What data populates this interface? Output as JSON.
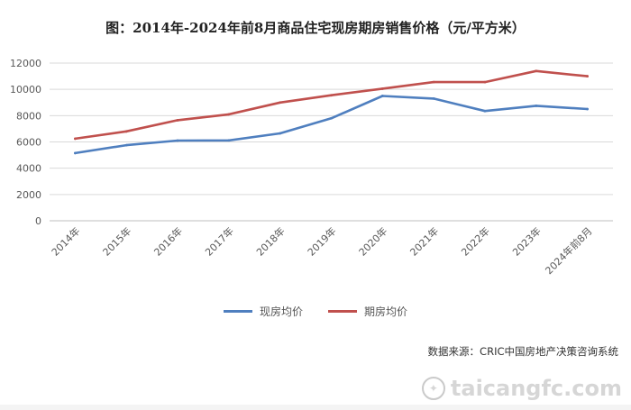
{
  "title": "图：2014年-2024年前8月商品住宅现房期房销售价格（元/平方米）",
  "source": "数据来源：CRIC中国房地产决策咨询系统",
  "watermark": "taicangfc.com",
  "colors": {
    "spot": "#4f7fbf",
    "presale": "#c0504d",
    "grid": "#d9d9d9",
    "axis": "#bfbfbf"
  },
  "chart_data": {
    "type": "line",
    "title": "图：2014年-2024年前8月商品住宅现房期房销售价格（元/平方米）",
    "categories": [
      "2014年",
      "2015年",
      "2016年",
      "2017年",
      "2018年",
      "2019年",
      "2020年",
      "2021年",
      "2022年",
      "2023年",
      "2024年前8月"
    ],
    "ylim": [
      0,
      12000
    ],
    "yticks": [
      0,
      2000,
      4000,
      6000,
      8000,
      10000,
      12000
    ],
    "grid": true,
    "legend_position": "bottom",
    "series": [
      {
        "name": "现房均价",
        "color": "#4f7fbf",
        "values": [
          5150,
          5750,
          6100,
          6120,
          6650,
          7800,
          9500,
          9300,
          8350,
          8750,
          8500
        ]
      },
      {
        "name": "期房均价",
        "color": "#c0504d",
        "values": [
          6250,
          6800,
          7650,
          8100,
          9000,
          9550,
          10050,
          10550,
          10550,
          11400,
          11000
        ]
      }
    ]
  }
}
